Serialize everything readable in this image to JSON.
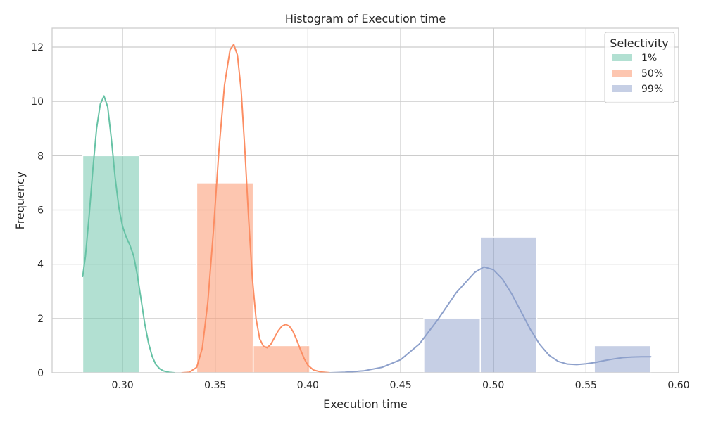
{
  "chart_data": {
    "type": "histogram",
    "title": "Histogram of Execution time",
    "xlabel": "Execution time",
    "ylabel": "Frequency",
    "xlim": [
      0.262,
      0.6
    ],
    "ylim": [
      0,
      12.7
    ],
    "xticks": [
      0.3,
      0.35,
      0.4,
      0.45,
      0.5,
      0.55,
      0.6
    ],
    "xtick_labels": [
      "0.30",
      "0.35",
      "0.40",
      "0.45",
      "0.50",
      "0.55",
      "0.60"
    ],
    "yticks": [
      0,
      2,
      4,
      6,
      8,
      10,
      12
    ],
    "ytick_labels": [
      "0",
      "2",
      "4",
      "6",
      "8",
      "10",
      "12"
    ],
    "grid": true,
    "legend": {
      "title": "Selectivity",
      "position": "top-right"
    },
    "series": [
      {
        "name": "1%",
        "color": "#66c2a5",
        "bins": [
          {
            "x0": 0.2785,
            "x1": 0.309,
            "count": 8
          }
        ],
        "kde": [
          [
            0.2785,
            3.55
          ],
          [
            0.28,
            4.3
          ],
          [
            0.282,
            5.8
          ],
          [
            0.284,
            7.5
          ],
          [
            0.286,
            9.0
          ],
          [
            0.288,
            9.9
          ],
          [
            0.29,
            10.2
          ],
          [
            0.292,
            9.8
          ],
          [
            0.294,
            8.6
          ],
          [
            0.296,
            7.2
          ],
          [
            0.298,
            6.1
          ],
          [
            0.3,
            5.4
          ],
          [
            0.302,
            5.0
          ],
          [
            0.304,
            4.7
          ],
          [
            0.306,
            4.3
          ],
          [
            0.308,
            3.6
          ],
          [
            0.31,
            2.7
          ],
          [
            0.312,
            1.8
          ],
          [
            0.314,
            1.1
          ],
          [
            0.316,
            0.6
          ],
          [
            0.318,
            0.3
          ],
          [
            0.32,
            0.15
          ],
          [
            0.322,
            0.07
          ],
          [
            0.325,
            0.02
          ],
          [
            0.328,
            0.0
          ]
        ]
      },
      {
        "name": "50%",
        "color": "#fc8d62",
        "bins": [
          {
            "x0": 0.34,
            "x1": 0.3705,
            "count": 7
          },
          {
            "x0": 0.3705,
            "x1": 0.401,
            "count": 1
          }
        ],
        "kde": [
          [
            0.332,
            0.0
          ],
          [
            0.336,
            0.02
          ],
          [
            0.34,
            0.2
          ],
          [
            0.343,
            0.9
          ],
          [
            0.346,
            2.6
          ],
          [
            0.349,
            5.2
          ],
          [
            0.352,
            8.2
          ],
          [
            0.355,
            10.6
          ],
          [
            0.358,
            11.9
          ],
          [
            0.36,
            12.1
          ],
          [
            0.362,
            11.7
          ],
          [
            0.364,
            10.4
          ],
          [
            0.366,
            8.2
          ],
          [
            0.368,
            5.7
          ],
          [
            0.37,
            3.5
          ],
          [
            0.372,
            2.0
          ],
          [
            0.374,
            1.25
          ],
          [
            0.376,
            0.98
          ],
          [
            0.378,
            0.92
          ],
          [
            0.38,
            1.05
          ],
          [
            0.382,
            1.3
          ],
          [
            0.384,
            1.55
          ],
          [
            0.386,
            1.72
          ],
          [
            0.388,
            1.78
          ],
          [
            0.39,
            1.72
          ],
          [
            0.392,
            1.52
          ],
          [
            0.394,
            1.2
          ],
          [
            0.396,
            0.85
          ],
          [
            0.398,
            0.52
          ],
          [
            0.4,
            0.28
          ],
          [
            0.403,
            0.1
          ],
          [
            0.407,
            0.03
          ],
          [
            0.412,
            0.0
          ]
        ]
      },
      {
        "name": "99%",
        "color": "#8da0cb",
        "bins": [
          {
            "x0": 0.4625,
            "x1": 0.493,
            "count": 2
          },
          {
            "x0": 0.493,
            "x1": 0.5235,
            "count": 5
          },
          {
            "x0": 0.5545,
            "x1": 0.585,
            "count": 1
          }
        ],
        "kde": [
          [
            0.412,
            0.0
          ],
          [
            0.42,
            0.02
          ],
          [
            0.43,
            0.07
          ],
          [
            0.44,
            0.2
          ],
          [
            0.45,
            0.48
          ],
          [
            0.46,
            1.05
          ],
          [
            0.47,
            1.95
          ],
          [
            0.48,
            2.95
          ],
          [
            0.49,
            3.7
          ],
          [
            0.495,
            3.9
          ],
          [
            0.5,
            3.8
          ],
          [
            0.505,
            3.45
          ],
          [
            0.51,
            2.9
          ],
          [
            0.515,
            2.25
          ],
          [
            0.52,
            1.6
          ],
          [
            0.525,
            1.05
          ],
          [
            0.53,
            0.65
          ],
          [
            0.535,
            0.42
          ],
          [
            0.54,
            0.32
          ],
          [
            0.545,
            0.3
          ],
          [
            0.55,
            0.33
          ],
          [
            0.555,
            0.38
          ],
          [
            0.56,
            0.45
          ],
          [
            0.565,
            0.51
          ],
          [
            0.57,
            0.56
          ],
          [
            0.575,
            0.58
          ],
          [
            0.58,
            0.59
          ],
          [
            0.585,
            0.59
          ]
        ]
      }
    ]
  }
}
